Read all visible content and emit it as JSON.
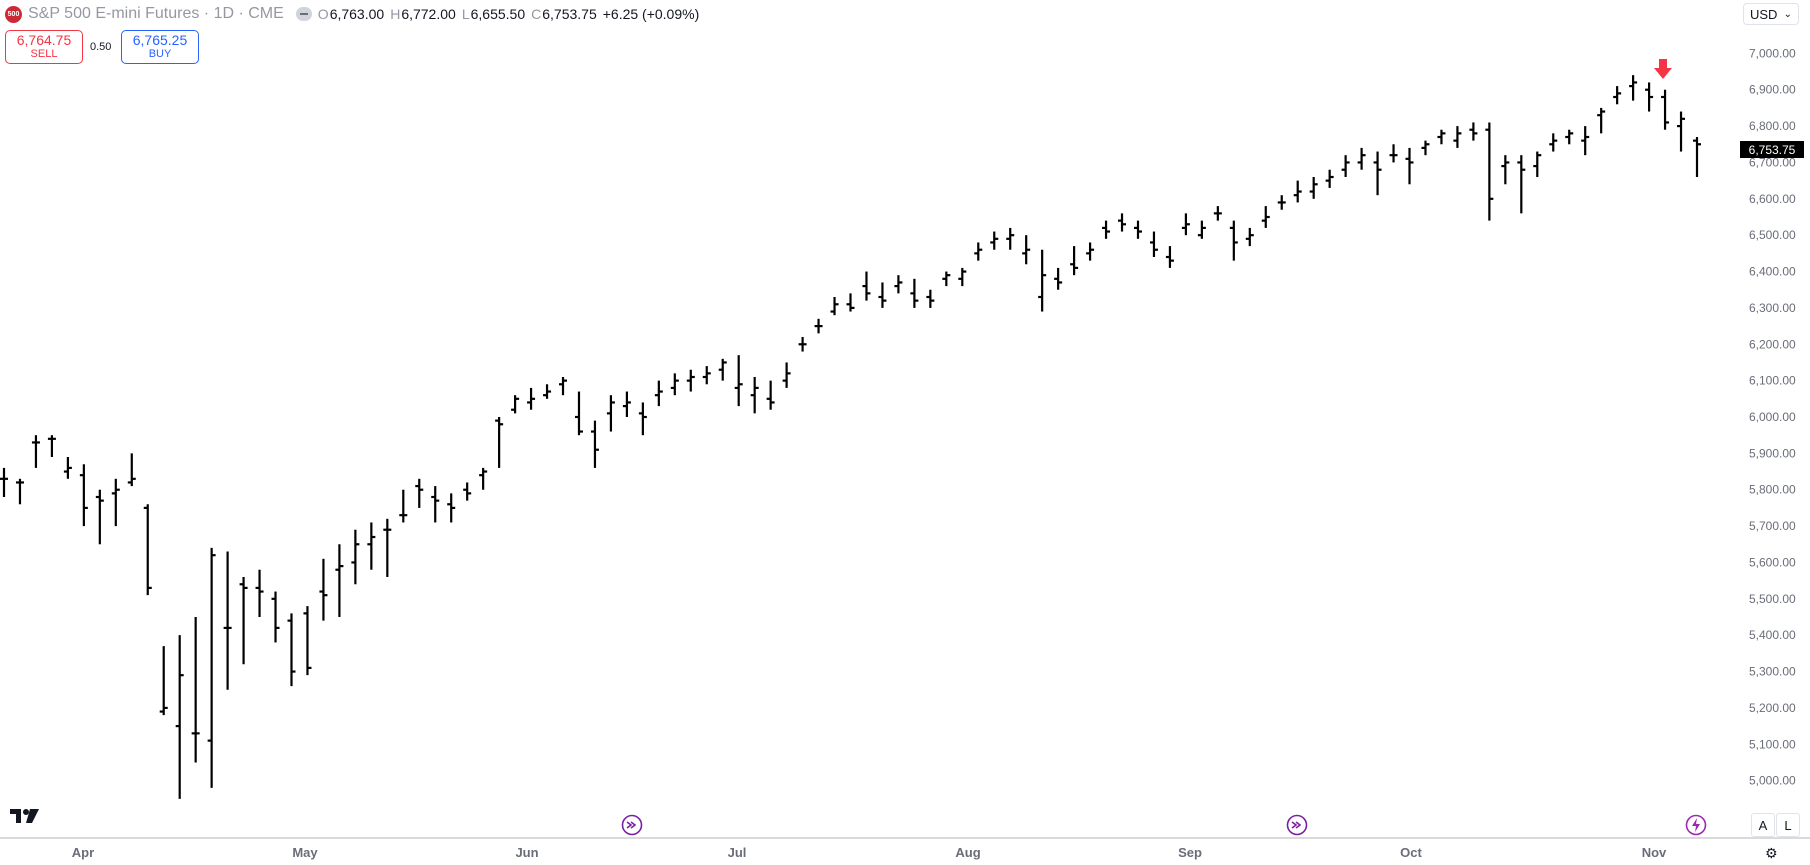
{
  "header": {
    "logo_text": "500",
    "symbol": "S&P 500 E-mini Futures",
    "interval": "1D",
    "exchange": "CME",
    "open_key": "O",
    "open": "6,763.00",
    "high_key": "H",
    "high": "6,772.00",
    "low_key": "L",
    "low": "6,655.50",
    "close_key": "C",
    "close": "6,753.75",
    "change": "+6.25 (+0.09%)"
  },
  "trade": {
    "sell_price": "6,764.75",
    "sell_label": "SELL",
    "spread": "0.50",
    "buy_price": "6,765.25",
    "buy_label": "BUY"
  },
  "currency": "USD",
  "scale_buttons": {
    "auto": "A",
    "log": "L"
  },
  "colors": {
    "bar": "#000000",
    "sell": "#f23645",
    "buy": "#2962ff",
    "marker": "#f23645",
    "event": "#9c27b0"
  },
  "chart_data": {
    "type": "ohlc",
    "ylim": [
      4900,
      7100
    ],
    "y_ticks": [
      "7,000.00",
      "6,900.00",
      "6,800.00",
      "6,700.00",
      "6,600.00",
      "6,500.00",
      "6,400.00",
      "6,300.00",
      "6,200.00",
      "6,100.00",
      "6,000.00",
      "5,900.00",
      "5,800.00",
      "5,700.00",
      "5,600.00",
      "5,500.00",
      "5,400.00",
      "5,300.00",
      "5,200.00",
      "5,100.00",
      "5,000.00"
    ],
    "x_ticks": [
      "Apr",
      "May",
      "Jun",
      "Jul",
      "Aug",
      "Sep",
      "Oct",
      "Nov"
    ],
    "last_price_label": "6,753.75",
    "approx_bars": [
      [
        5830,
        5860,
        5780,
        5830
      ],
      [
        5820,
        5830,
        5760,
        5820
      ],
      [
        5930,
        5950,
        5860,
        5930
      ],
      [
        5940,
        5950,
        5890,
        5940
      ],
      [
        5850,
        5890,
        5830,
        5860
      ],
      [
        5840,
        5870,
        5700,
        5750
      ],
      [
        5780,
        5800,
        5650,
        5770
      ],
      [
        5790,
        5830,
        5700,
        5800
      ],
      [
        5820,
        5900,
        5810,
        5830
      ],
      [
        5750,
        5760,
        5510,
        5530
      ],
      [
        5190,
        5370,
        5180,
        5200
      ],
      [
        5150,
        5400,
        4950,
        5290
      ],
      [
        5130,
        5450,
        5050,
        5130
      ],
      [
        5110,
        5640,
        4980,
        5620
      ],
      [
        5420,
        5630,
        5250,
        5420
      ],
      [
        5540,
        5560,
        5320,
        5530
      ],
      [
        5530,
        5580,
        5450,
        5520
      ],
      [
        5500,
        5520,
        5380,
        5420
      ],
      [
        5440,
        5460,
        5260,
        5300
      ],
      [
        5460,
        5480,
        5290,
        5310
      ],
      [
        5520,
        5610,
        5440,
        5510
      ],
      [
        5580,
        5650,
        5450,
        5590
      ],
      [
        5600,
        5690,
        5540,
        5650
      ],
      [
        5650,
        5710,
        5580,
        5670
      ],
      [
        5690,
        5720,
        5560,
        5690
      ],
      [
        5730,
        5800,
        5710,
        5730
      ],
      [
        5810,
        5830,
        5750,
        5800
      ],
      [
        5780,
        5810,
        5710,
        5770
      ],
      [
        5760,
        5790,
        5710,
        5750
      ],
      [
        5800,
        5820,
        5770,
        5790
      ],
      [
        5840,
        5860,
        5800,
        5850
      ],
      [
        5990,
        6000,
        5860,
        5980
      ],
      [
        6020,
        6060,
        6010,
        6050
      ],
      [
        6040,
        6080,
        6020,
        6050
      ],
      [
        6060,
        6090,
        6050,
        6070
      ],
      [
        6090,
        6110,
        6060,
        6100
      ],
      [
        6000,
        6070,
        5950,
        5960
      ],
      [
        5960,
        5990,
        5860,
        5910
      ],
      [
        6010,
        6060,
        5960,
        6040
      ],
      [
        6030,
        6070,
        6000,
        6040
      ],
      [
        6010,
        6040,
        5950,
        6000
      ],
      [
        6060,
        6100,
        6030,
        6070
      ],
      [
        6080,
        6120,
        6060,
        6100
      ],
      [
        6100,
        6130,
        6070,
        6110
      ],
      [
        6110,
        6140,
        6090,
        6120
      ],
      [
        6130,
        6160,
        6100,
        6150
      ],
      [
        6080,
        6170,
        6030,
        6090
      ],
      [
        6060,
        6110,
        6010,
        6080
      ],
      [
        6050,
        6100,
        6020,
        6040
      ],
      [
        6100,
        6150,
        6080,
        6120
      ],
      [
        6200,
        6220,
        6180,
        6200
      ],
      [
        6250,
        6270,
        6230,
        6250
      ],
      [
        6290,
        6330,
        6280,
        6310
      ],
      [
        6310,
        6340,
        6290,
        6300
      ],
      [
        6360,
        6400,
        6320,
        6340
      ],
      [
        6330,
        6370,
        6300,
        6320
      ],
      [
        6360,
        6390,
        6340,
        6370
      ],
      [
        6340,
        6380,
        6300,
        6320
      ],
      [
        6330,
        6350,
        6300,
        6320
      ],
      [
        6380,
        6400,
        6360,
        6390
      ],
      [
        6380,
        6410,
        6360,
        6400
      ],
      [
        6450,
        6480,
        6430,
        6460
      ],
      [
        6480,
        6510,
        6460,
        6490
      ],
      [
        6490,
        6520,
        6460,
        6500
      ],
      [
        6450,
        6500,
        6420,
        6460
      ],
      [
        6330,
        6460,
        6290,
        6390
      ],
      [
        6380,
        6410,
        6350,
        6370
      ],
      [
        6420,
        6470,
        6390,
        6410
      ],
      [
        6450,
        6480,
        6430,
        6460
      ],
      [
        6520,
        6540,
        6490,
        6510
      ],
      [
        6540,
        6560,
        6510,
        6530
      ],
      [
        6520,
        6540,
        6490,
        6510
      ],
      [
        6480,
        6510,
        6440,
        6460
      ],
      [
        6440,
        6470,
        6410,
        6430
      ],
      [
        6520,
        6560,
        6500,
        6530
      ],
      [
        6500,
        6540,
        6490,
        6520
      ],
      [
        6560,
        6580,
        6540,
        6560
      ],
      [
        6520,
        6540,
        6430,
        6480
      ],
      [
        6490,
        6520,
        6470,
        6500
      ],
      [
        6540,
        6580,
        6520,
        6550
      ],
      [
        6590,
        6610,
        6570,
        6590
      ],
      [
        6610,
        6650,
        6590,
        6620
      ],
      [
        6620,
        6660,
        6600,
        6640
      ],
      [
        6650,
        6680,
        6630,
        6660
      ],
      [
        6680,
        6720,
        6660,
        6700
      ],
      [
        6700,
        6740,
        6680,
        6720
      ],
      [
        6700,
        6730,
        6610,
        6680
      ],
      [
        6720,
        6750,
        6700,
        6720
      ],
      [
        6710,
        6740,
        6640,
        6700
      ],
      [
        6740,
        6760,
        6720,
        6750
      ],
      [
        6770,
        6790,
        6750,
        6780
      ],
      [
        6760,
        6800,
        6740,
        6780
      ],
      [
        6790,
        6810,
        6760,
        6780
      ],
      [
        6790,
        6810,
        6540,
        6600
      ],
      [
        6690,
        6720,
        6640,
        6700
      ],
      [
        6700,
        6720,
        6560,
        6680
      ],
      [
        6690,
        6730,
        6660,
        6720
      ],
      [
        6750,
        6780,
        6730,
        6760
      ],
      [
        6770,
        6790,
        6750,
        6780
      ],
      [
        6760,
        6800,
        6720,
        6770
      ],
      [
        6830,
        6850,
        6780,
        6840
      ],
      [
        6880,
        6910,
        6860,
        6890
      ],
      [
        6910,
        6940,
        6870,
        6920
      ],
      [
        6900,
        6920,
        6840,
        6880
      ],
      [
        6880,
        6900,
        6790,
        6810
      ],
      [
        6800,
        6840,
        6730,
        6820
      ],
      [
        6760,
        6770,
        6660,
        6750
      ]
    ]
  }
}
